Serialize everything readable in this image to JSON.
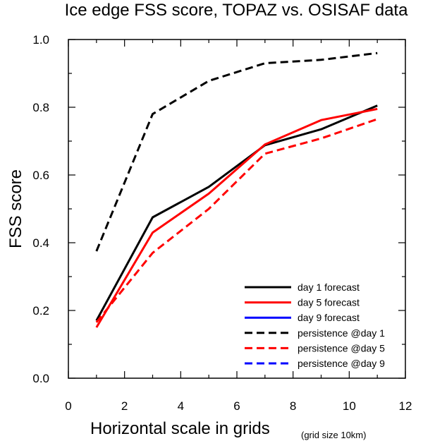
{
  "chart_data": {
    "type": "line",
    "title": "Ice edge FSS score, TOPAZ vs. OSISAF data",
    "xlabel": "Horizontal scale in grids",
    "xlabel_note": "(grid size 10km)",
    "ylabel": "FSS score",
    "xlim": [
      0,
      12
    ],
    "ylim": [
      0,
      1
    ],
    "xticks": [
      0,
      2,
      4,
      6,
      8,
      10,
      12
    ],
    "xtick_labels": [
      "0",
      "2",
      "4",
      "6",
      "8",
      "10",
      "12"
    ],
    "yticks": [
      0,
      0.2,
      0.4,
      0.6,
      0.8,
      1.0
    ],
    "ytick_labels": [
      "0.0",
      "0.2",
      "0.4",
      "0.6",
      "0.8",
      "1.0"
    ],
    "grid": false,
    "legend_position": "bottom-right",
    "series": [
      {
        "name": "day 1 forecast",
        "color": "#000000",
        "style": "solid",
        "x": [
          1,
          3,
          5,
          7,
          9,
          11
        ],
        "y": [
          0.17,
          0.475,
          0.565,
          0.688,
          0.735,
          0.805
        ]
      },
      {
        "name": "day 5 forecast",
        "color": "#ff0000",
        "style": "solid",
        "x": [
          1,
          3,
          5,
          7,
          9,
          11
        ],
        "y": [
          0.15,
          0.43,
          0.545,
          0.69,
          0.762,
          0.795
        ]
      },
      {
        "name": "day 9 forecast",
        "color": "#0000ff",
        "style": "solid",
        "x": [],
        "y": []
      },
      {
        "name": "persistence @day 1",
        "color": "#000000",
        "style": "dashed",
        "x": [
          1,
          3,
          5,
          7,
          9,
          11
        ],
        "y": [
          0.375,
          0.78,
          0.878,
          0.93,
          0.94,
          0.96
        ]
      },
      {
        "name": "persistence @day 5",
        "color": "#ff0000",
        "style": "dashed",
        "x": [
          1,
          3,
          5,
          7,
          9,
          11
        ],
        "y": [
          0.165,
          0.37,
          0.5,
          0.663,
          0.708,
          0.765
        ]
      },
      {
        "name": "persistence @day 9",
        "color": "#0000ff",
        "style": "dashed",
        "x": [],
        "y": []
      }
    ]
  }
}
